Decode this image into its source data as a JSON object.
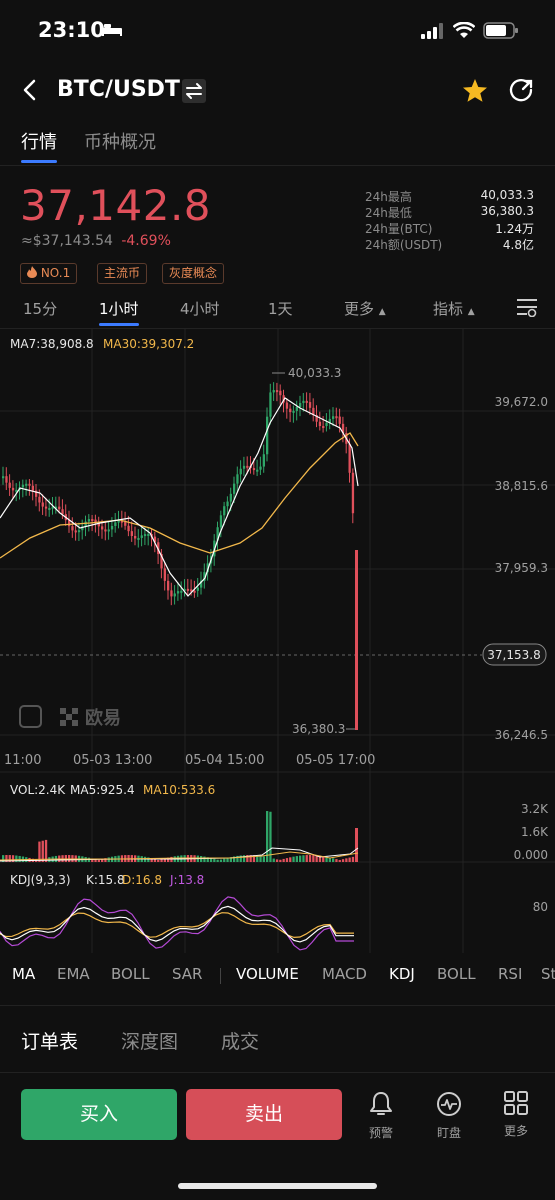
{
  "status": {
    "time": "23:10"
  },
  "header": {
    "pair": "BTC/USDT"
  },
  "tabs": [
    "行情",
    "币种概况"
  ],
  "price": {
    "last": "37,142.8",
    "approx": "≈$37,143.54",
    "change": "-4.69%"
  },
  "stats": [
    {
      "label": "24h最高",
      "value": "40,033.3"
    },
    {
      "label": "24h最低",
      "value": "36,380.3"
    },
    {
      "label": "24h量(BTC)",
      "value": "1.24万"
    },
    {
      "label": "24h额(USDT)",
      "value": "4.8亿"
    }
  ],
  "tags": [
    "NO.1",
    "主流币",
    "灰度概念"
  ],
  "intervals": [
    "15分",
    "1小时",
    "4小时",
    "1天",
    "更多",
    "指标"
  ],
  "ma_legend": {
    "ma7": "MA7:38,908.8",
    "ma30": "MA30:39,307.2"
  },
  "chart": {
    "price_axis": [
      "39,672.0",
      "38,815.6",
      "37,959.3",
      "36,246.5"
    ],
    "current_price_tag": "37,153.8",
    "high_label": "40,033.3",
    "low_label": "36,380.3",
    "time_axis": [
      "11:00",
      "05-03 13:00",
      "05-04 15:00",
      "05-05 17:00"
    ],
    "watermark": "欧易"
  },
  "volume": {
    "legend_vol": "VOL:2.4K",
    "legend_ma5": "MA5:925.4",
    "legend_ma10": "MA10:533.6",
    "axis": [
      "3.2K",
      "1.6K",
      "0.000"
    ]
  },
  "kdj": {
    "legend": "KDJ(9,3,3)",
    "k": "K:15.8",
    "d": "D:16.8",
    "j": "J:13.8",
    "axis": "80"
  },
  "indicators": [
    "MA",
    "EMA",
    "BOLL",
    "SAR",
    "VOLUME",
    "MACD",
    "KDJ",
    "BOLL",
    "RSI",
    "St"
  ],
  "sections": [
    "订单表",
    "深度图",
    "成交"
  ],
  "actions": {
    "buy": "买入",
    "sell": "卖出",
    "alert": "预警",
    "watch": "盯盘",
    "more": "更多"
  },
  "colors": {
    "up": "#2fa668",
    "down": "#e0505b",
    "accent": "#3c7bff",
    "ma30": "#f2b84b",
    "ma7": "#ffffff",
    "j": "#b54ad6"
  }
}
